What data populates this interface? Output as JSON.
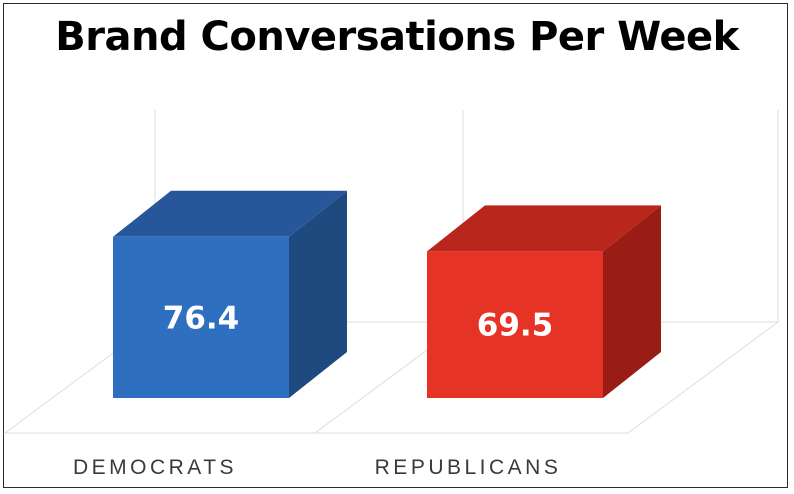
{
  "chart_data": {
    "type": "bar",
    "title": "Brand Conversations Per Week",
    "categories": [
      "DEMOCRATS",
      "REPUBLICANS"
    ],
    "values": [
      76.4,
      69.5
    ],
    "data_labels": [
      "76.4",
      "69.5"
    ],
    "ylim": [
      0,
      100
    ],
    "grid": true,
    "legend": "none",
    "style": "3d-column",
    "colors": {
      "DEMOCRATS": {
        "front": "#2f6fc0",
        "top": "#27579a",
        "side": "#1f4a80"
      },
      "REPUBLICANS": {
        "front": "#e53426",
        "top": "#b8261c",
        "side": "#991d15"
      }
    }
  }
}
